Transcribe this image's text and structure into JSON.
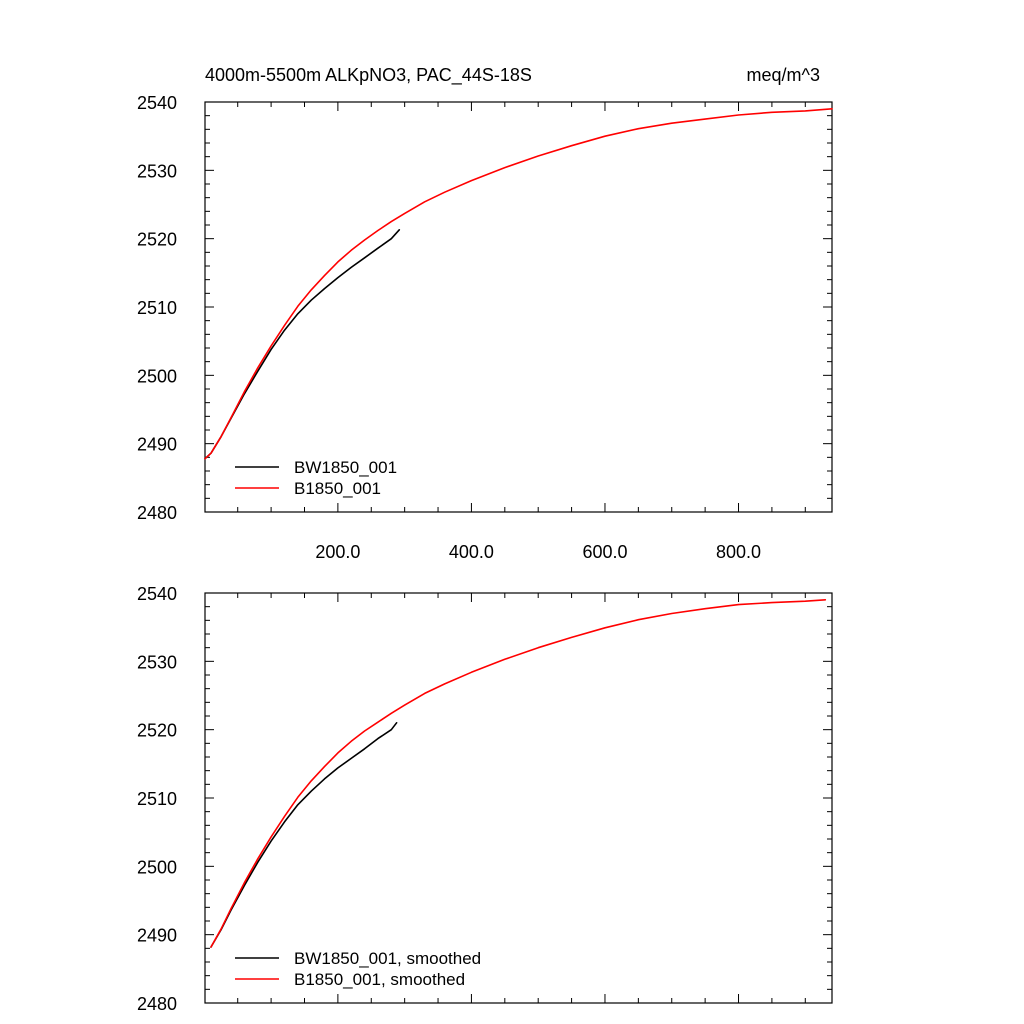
{
  "header": {
    "title": "4000m-5500m ALKpNO3, PAC_44S-18S",
    "units": "meq/m^3"
  },
  "colors": {
    "BW1850_001": "#000000",
    "B1850_001": "#ff0000"
  },
  "chart_data": [
    {
      "type": "line",
      "panel": "top",
      "title": "4000m-5500m ALKpNO3, PAC_44S-18S",
      "units_label": "meq/m^3",
      "xlim": [
        1,
        940
      ],
      "ylim": [
        2480,
        2540
      ],
      "x_ticks": [
        200,
        400,
        600,
        800
      ],
      "x_tick_labels": [
        "200.0",
        "400.0",
        "600.0",
        "800.0"
      ],
      "y_ticks": [
        2480,
        2490,
        2500,
        2510,
        2520,
        2530,
        2540
      ],
      "y_tick_labels": [
        "2480",
        "2490",
        "2500",
        "2510",
        "2520",
        "2530",
        "2540"
      ],
      "grid": false,
      "legend_position": "bottom-left",
      "series": [
        {
          "name": "BW1850_001",
          "color": "#000000",
          "x": [
            1,
            10,
            25,
            40,
            60,
            80,
            100,
            120,
            140,
            160,
            180,
            200,
            220,
            240,
            260,
            280,
            292
          ],
          "y": [
            2487.8,
            2488.6,
            2491.0,
            2493.7,
            2497.3,
            2500.6,
            2503.8,
            2506.6,
            2509.0,
            2511.0,
            2512.7,
            2514.3,
            2515.8,
            2517.2,
            2518.6,
            2520.0,
            2521.3
          ]
        },
        {
          "name": "B1850_001",
          "color": "#ff0000",
          "x": [
            1,
            10,
            25,
            40,
            60,
            80,
            100,
            120,
            140,
            160,
            180,
            200,
            220,
            240,
            260,
            280,
            300,
            330,
            360,
            400,
            450,
            500,
            550,
            600,
            650,
            700,
            750,
            800,
            850,
            900,
            940
          ],
          "y": [
            2487.8,
            2488.6,
            2491.0,
            2493.8,
            2497.6,
            2501.1,
            2504.3,
            2507.3,
            2510.1,
            2512.5,
            2514.6,
            2516.6,
            2518.3,
            2519.8,
            2521.2,
            2522.5,
            2523.7,
            2525.4,
            2526.8,
            2528.5,
            2530.4,
            2532.1,
            2533.6,
            2535.0,
            2536.1,
            2536.9,
            2537.5,
            2538.1,
            2538.5,
            2538.7,
            2539.0
          ]
        }
      ]
    },
    {
      "type": "line",
      "panel": "bottom",
      "xlim": [
        1,
        940
      ],
      "ylim": [
        2480,
        2540
      ],
      "x_ticks": [
        200,
        400,
        600,
        800
      ],
      "y_ticks": [
        2480,
        2490,
        2500,
        2510,
        2520,
        2530,
        2540
      ],
      "y_tick_labels": [
        "2480",
        "2490",
        "2500",
        "2510",
        "2520",
        "2530",
        "2540"
      ],
      "grid": false,
      "legend_position": "bottom-left",
      "series": [
        {
          "name": "BW1850_001, smoothed",
          "color": "#000000",
          "x": [
            10,
            25,
            40,
            60,
            80,
            100,
            120,
            140,
            160,
            180,
            200,
            220,
            240,
            260,
            280,
            288
          ],
          "y": [
            2488.2,
            2490.7,
            2493.6,
            2497.2,
            2500.6,
            2503.7,
            2506.5,
            2509.0,
            2511.0,
            2512.8,
            2514.4,
            2515.8,
            2517.2,
            2518.7,
            2520.0,
            2521.0
          ]
        },
        {
          "name": "B1850_001, smoothed",
          "color": "#ff0000",
          "x": [
            10,
            25,
            40,
            60,
            80,
            100,
            120,
            140,
            160,
            180,
            200,
            220,
            240,
            260,
            280,
            300,
            330,
            360,
            400,
            450,
            500,
            550,
            600,
            650,
            700,
            750,
            800,
            850,
            900,
            930
          ],
          "y": [
            2488.2,
            2490.8,
            2493.8,
            2497.6,
            2501.1,
            2504.3,
            2507.3,
            2510.1,
            2512.5,
            2514.6,
            2516.6,
            2518.3,
            2519.8,
            2521.1,
            2522.4,
            2523.6,
            2525.3,
            2526.7,
            2528.4,
            2530.3,
            2532.0,
            2533.5,
            2534.9,
            2536.1,
            2537.0,
            2537.7,
            2538.3,
            2538.6,
            2538.8,
            2539.0
          ]
        }
      ]
    }
  ]
}
